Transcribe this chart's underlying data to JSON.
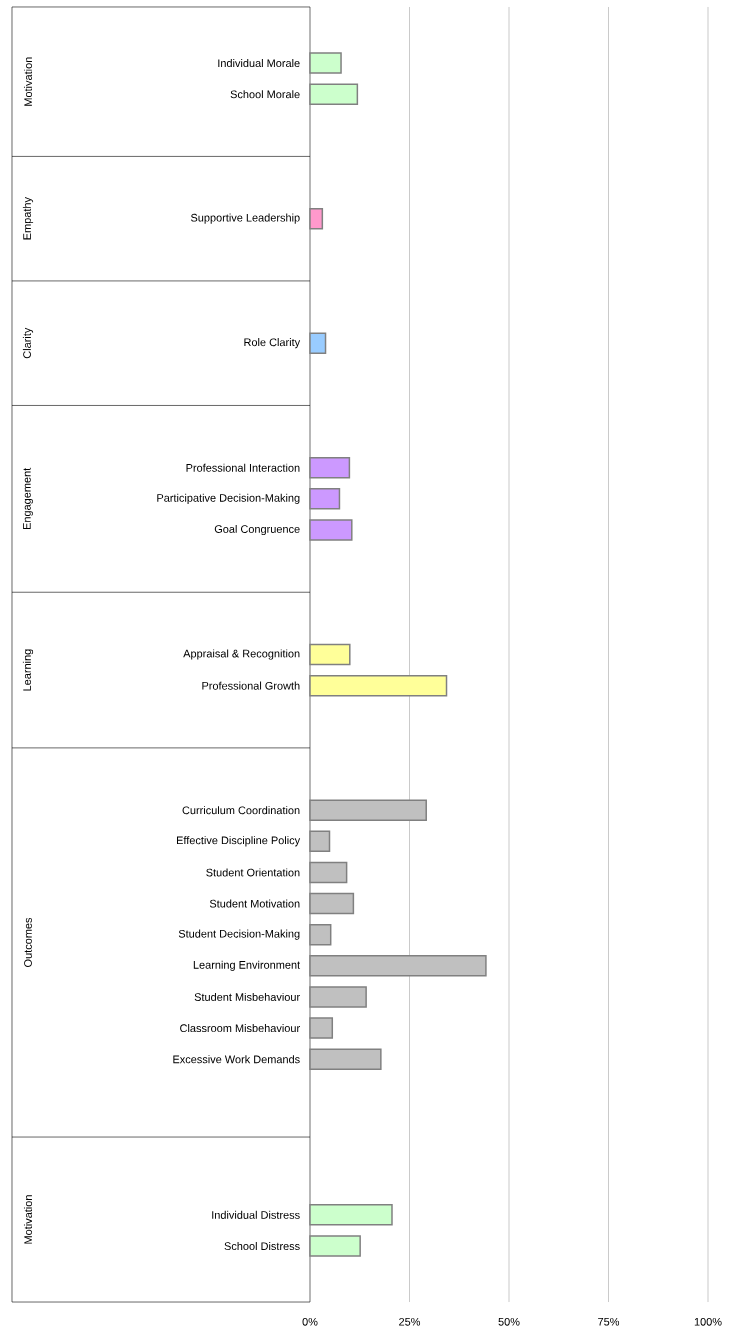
{
  "chart_data": {
    "type": "bar",
    "orientation": "horizontal",
    "categories": [
      null,
      "Individual Morale",
      "School Morale",
      null,
      null,
      null,
      "Supportive Leadership",
      null,
      null,
      null,
      "Role Clarity",
      null,
      null,
      null,
      "Professional Interaction",
      "Participative Decision-Making",
      "Goal Congruence",
      null,
      null,
      null,
      "Appraisal & Recognition",
      "Professional Growth",
      null,
      null,
      null,
      "Curriculum Coordination",
      "Effective Discipline Policy",
      "Student Orientation",
      "Student Motivation",
      "Student Decision-Making",
      "Learning Environment",
      "Student Misbehaviour",
      "Classroom Misbehaviour",
      "Excessive Work Demands",
      null,
      null,
      null,
      null,
      "Individual Distress",
      "School Distress",
      null
    ],
    "values": [
      null,
      7.8,
      11.9,
      null,
      null,
      null,
      3.1,
      null,
      null,
      null,
      3.9,
      null,
      null,
      null,
      9.9,
      7.4,
      10.5,
      null,
      null,
      null,
      10.0,
      34.3,
      null,
      null,
      null,
      29.2,
      4.9,
      9.2,
      10.9,
      5.2,
      44.2,
      14.1,
      5.6,
      17.8,
      null,
      null,
      null,
      null,
      20.6,
      12.6,
      null
    ],
    "colors": [
      null,
      "#ccffcc",
      "#ccffcc",
      null,
      null,
      null,
      "#ff99cc",
      null,
      null,
      null,
      "#99ccff",
      null,
      null,
      null,
      "#cc99ff",
      "#cc99ff",
      "#cc99ff",
      null,
      null,
      null,
      "#ffff99",
      "#ffff99",
      null,
      null,
      null,
      "#c0c0c0",
      "#c0c0c0",
      "#c0c0c0",
      "#c0c0c0",
      "#c0c0c0",
      "#c0c0c0",
      "#c0c0c0",
      "#c0c0c0",
      "#c0c0c0",
      null,
      null,
      null,
      null,
      "#ccffcc",
      "#ccffcc",
      null
    ],
    "annotations": [
      "Motivation",
      "Empathy",
      "Clarity",
      "Engagement",
      "Learning",
      "Outcomes",
      "Motivation"
    ],
    "xlim": [
      0,
      100
    ],
    "xticks": [
      {
        "value": 0,
        "label": "0%"
      },
      {
        "value": 25,
        "label": "25%"
      },
      {
        "value": 50,
        "label": "50%"
      },
      {
        "value": 75,
        "label": "75%"
      },
      {
        "value": 100,
        "label": "100%"
      }
    ],
    "grid": "x"
  }
}
